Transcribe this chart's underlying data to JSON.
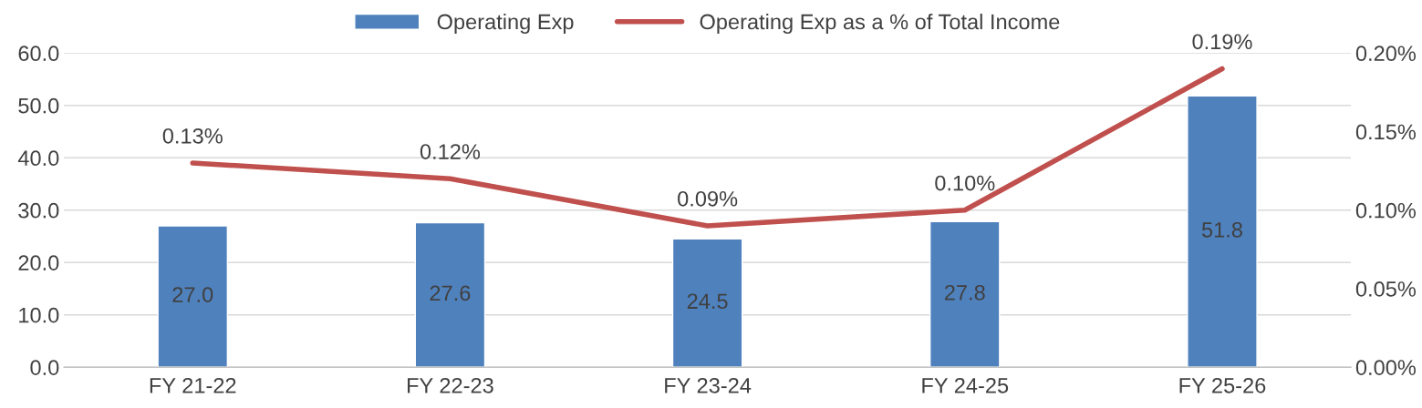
{
  "chart_data": {
    "type": "bar",
    "categories": [
      "FY 21-22",
      "FY 22-23",
      "FY 23-24",
      "FY 24-25",
      "FY 25-26"
    ],
    "series": [
      {
        "name": "Operating Exp",
        "color": "#4f81bd",
        "values": [
          27.0,
          27.6,
          24.5,
          27.8,
          51.8
        ],
        "value_labels": [
          "27.0",
          "27.6",
          "24.5",
          "27.8",
          "51.8"
        ]
      },
      {
        "name": "Operating Exp as a % of Total Income",
        "type": "line",
        "axis": "y2",
        "color": "#c0504d",
        "values": [
          0.13,
          0.12,
          0.09,
          0.1,
          0.19
        ],
        "value_labels": [
          "0.13%",
          "0.12%",
          "0.09%",
          "0.10%",
          "0.19%"
        ]
      }
    ],
    "ylim": [
      0,
      60
    ],
    "yticks": [
      {
        "value": 0,
        "label": "0.0"
      },
      {
        "value": 10,
        "label": "10.0"
      },
      {
        "value": 20,
        "label": "20.0"
      },
      {
        "value": 30,
        "label": "30.0"
      },
      {
        "value": 40,
        "label": "40.0"
      },
      {
        "value": 50,
        "label": "50.0"
      },
      {
        "value": 60,
        "label": "60.0"
      }
    ],
    "y2lim": [
      0,
      0.2
    ],
    "y2ticks": [
      {
        "value": 0,
        "label": "0.00%"
      },
      {
        "value": 0.05,
        "label": "0.05%"
      },
      {
        "value": 0.1,
        "label": "0.10%"
      },
      {
        "value": 0.15,
        "label": "0.15%"
      },
      {
        "value": 0.2,
        "label": "0.20%"
      }
    ],
    "grid": "y",
    "legend": "top",
    "marker": "none",
    "line_style": "solid"
  }
}
